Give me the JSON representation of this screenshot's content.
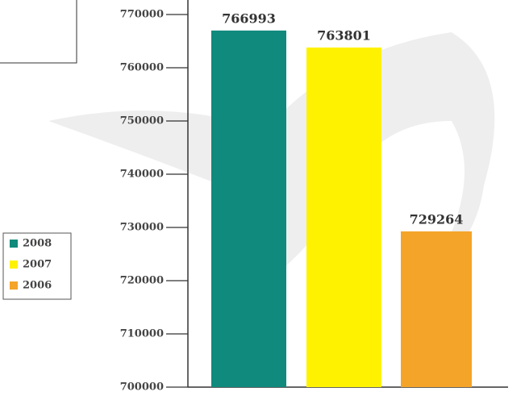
{
  "chart_data": {
    "type": "bar",
    "categories": [
      "2008",
      "2007",
      "2006"
    ],
    "values": [
      766993,
      763801,
      729264
    ],
    "colors": [
      "#0f8a7c",
      "#fff200",
      "#f4a428"
    ],
    "ylim": [
      700000,
      770000
    ],
    "yticks": [
      700000,
      710000,
      720000,
      730000,
      740000,
      750000,
      760000,
      770000
    ]
  }
}
